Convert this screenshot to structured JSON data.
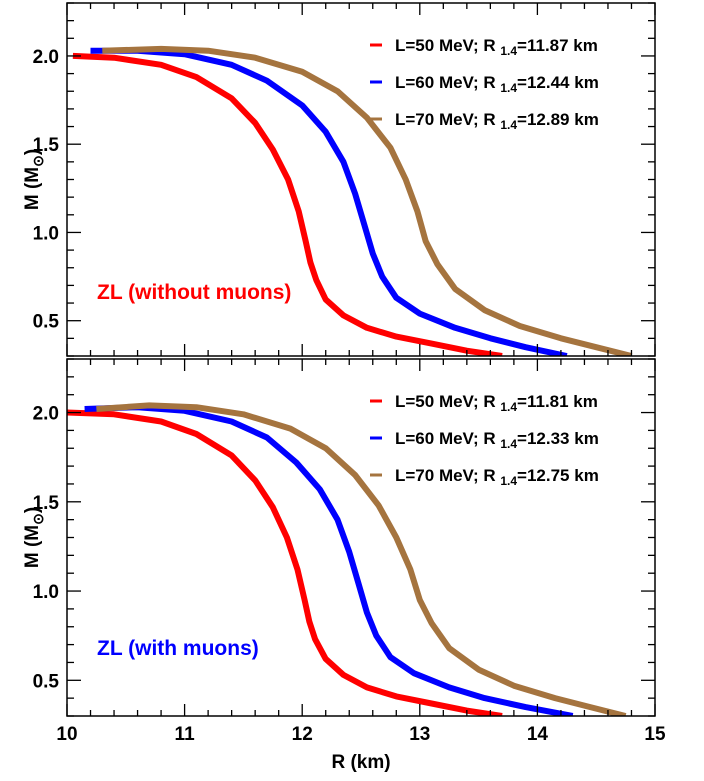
{
  "chart_data": [
    {
      "type": "line",
      "panel": "top",
      "annotation": {
        "text": "ZL (without muons)",
        "color": "#ff0000"
      },
      "xlim": [
        10,
        15
      ],
      "ylim": [
        0.3,
        2.3
      ],
      "x_ticks": [
        "10",
        "11",
        "12",
        "13",
        "14",
        "15"
      ],
      "y_ticks": [
        "0.5",
        "1.0",
        "1.5",
        "2.0"
      ],
      "ylabel": {
        "main": "M (M",
        "sym": "⊙",
        "close": ")"
      },
      "xlabel": "",
      "legend_position": "top-right",
      "series": [
        {
          "name": "L=50 MeV; R 1.4=11.87 km",
          "legend": {
            "pre": "L=50 MeV; R",
            "sub": "1.4",
            "post": "=11.87 km"
          },
          "color": "#ff0000",
          "x": [
            10.05,
            10.4,
            10.8,
            11.1,
            11.4,
            11.6,
            11.75,
            11.88,
            11.97,
            12.03,
            12.07,
            12.12,
            12.2,
            12.35,
            12.55,
            12.8,
            13.1,
            13.4,
            13.7
          ],
          "y": [
            2.0,
            1.99,
            1.95,
            1.88,
            1.76,
            1.62,
            1.47,
            1.3,
            1.12,
            0.95,
            0.83,
            0.73,
            0.62,
            0.53,
            0.46,
            0.41,
            0.37,
            0.33,
            0.3
          ]
        },
        {
          "name": "L=60 MeV; R 1.4=12.44 km",
          "legend": {
            "pre": "L=60 MeV; R",
            "sub": "1.4",
            "post": "=12.44 km"
          },
          "color": "#0000ff",
          "x": [
            10.2,
            10.6,
            11.0,
            11.4,
            11.7,
            12.0,
            12.2,
            12.35,
            12.45,
            12.53,
            12.6,
            12.68,
            12.8,
            13.0,
            13.3,
            13.6,
            13.9,
            14.25
          ],
          "y": [
            2.03,
            2.03,
            2.01,
            1.95,
            1.86,
            1.72,
            1.57,
            1.4,
            1.22,
            1.04,
            0.88,
            0.75,
            0.63,
            0.54,
            0.46,
            0.4,
            0.35,
            0.3
          ]
        },
        {
          "name": "L=70 MeV; R 1.4=12.89 km",
          "legend": {
            "pre": "L=70 MeV; R",
            "sub": "1.4",
            "post": "=12.89 km"
          },
          "color": "#a5743f",
          "x": [
            10.3,
            10.8,
            11.2,
            11.6,
            12.0,
            12.3,
            12.55,
            12.75,
            12.88,
            12.98,
            13.05,
            13.15,
            13.3,
            13.55,
            13.85,
            14.2,
            14.5,
            14.8
          ],
          "y": [
            2.03,
            2.04,
            2.03,
            1.99,
            1.91,
            1.8,
            1.65,
            1.48,
            1.3,
            1.12,
            0.95,
            0.82,
            0.68,
            0.56,
            0.47,
            0.4,
            0.35,
            0.3
          ]
        }
      ]
    },
    {
      "type": "line",
      "panel": "bottom",
      "annotation": {
        "text": "ZL (with muons)",
        "color": "#0000ff"
      },
      "xlim": [
        10,
        15
      ],
      "ylim": [
        0.3,
        2.3
      ],
      "x_ticks": [
        "10",
        "11",
        "12",
        "13",
        "14",
        "15"
      ],
      "y_ticks": [
        "0.5",
        "1.0",
        "1.5",
        "2.0"
      ],
      "ylabel": {
        "main": "M (M",
        "sym": "⊙",
        "close": ")"
      },
      "xlabel": "R (km)",
      "legend_position": "top-right",
      "series": [
        {
          "name": "L=50 MeV; R 1.4=11.81 km",
          "legend": {
            "pre": "L=50 MeV; R",
            "sub": "1.4",
            "post": "=11.81 km"
          },
          "color": "#ff0000",
          "x": [
            10.0,
            10.4,
            10.8,
            11.1,
            11.4,
            11.6,
            11.75,
            11.87,
            11.96,
            12.02,
            12.06,
            12.11,
            12.2,
            12.35,
            12.55,
            12.8,
            13.1,
            13.4,
            13.7
          ],
          "y": [
            2.0,
            1.99,
            1.95,
            1.88,
            1.76,
            1.62,
            1.47,
            1.3,
            1.12,
            0.95,
            0.83,
            0.73,
            0.62,
            0.53,
            0.46,
            0.41,
            0.37,
            0.33,
            0.3
          ]
        },
        {
          "name": "L=60 MeV; R 1.4=12.33 km",
          "legend": {
            "pre": "L=60 MeV; R",
            "sub": "1.4",
            "post": "=12.33 km"
          },
          "color": "#0000ff",
          "x": [
            10.15,
            10.6,
            11.0,
            11.4,
            11.7,
            11.95,
            12.15,
            12.3,
            12.4,
            12.48,
            12.55,
            12.63,
            12.75,
            12.95,
            13.25,
            13.55,
            13.9,
            14.3
          ],
          "y": [
            2.02,
            2.03,
            2.01,
            1.95,
            1.86,
            1.72,
            1.57,
            1.4,
            1.22,
            1.04,
            0.88,
            0.75,
            0.63,
            0.54,
            0.46,
            0.4,
            0.35,
            0.3
          ]
        },
        {
          "name": "L=70 MeV; R 1.4=12.75 km",
          "legend": {
            "pre": "L=70 MeV; R",
            "sub": "1.4",
            "post": "=12.75 km"
          },
          "color": "#a5743f",
          "x": [
            10.25,
            10.7,
            11.1,
            11.5,
            11.9,
            12.2,
            12.45,
            12.65,
            12.8,
            12.92,
            13.0,
            13.1,
            13.25,
            13.5,
            13.8,
            14.15,
            14.45,
            14.75
          ],
          "y": [
            2.02,
            2.04,
            2.03,
            1.99,
            1.91,
            1.8,
            1.65,
            1.48,
            1.3,
            1.12,
            0.95,
            0.82,
            0.68,
            0.56,
            0.47,
            0.4,
            0.35,
            0.3
          ]
        }
      ]
    }
  ]
}
